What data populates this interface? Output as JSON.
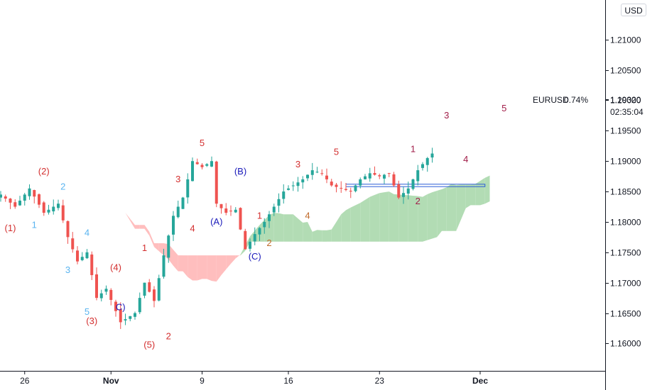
{
  "currency_button": "USD",
  "instrument": {
    "label": "EURUSD",
    "change": "0.74%",
    "last_price": "1.19320",
    "countdown": "02:35:04"
  },
  "chart_data": {
    "type": "candlestick",
    "symbol": "EURUSD",
    "ylim": [
      1.1555,
      1.2165
    ],
    "y_ticks": [
      1.16,
      1.165,
      1.17,
      1.175,
      1.18,
      1.185,
      1.19,
      1.195,
      1.2,
      1.205,
      1.21
    ],
    "y_tick_labels": [
      "1.16000",
      "1.16500",
      "1.17000",
      "1.17500",
      "1.18000",
      "1.18500",
      "1.19000",
      "1.19500",
      "1.20000",
      "1.20500",
      "1.21000"
    ],
    "x_ticks": [
      {
        "index": 5,
        "label": "26",
        "bold": false
      },
      {
        "index": 23,
        "label": "Nov",
        "bold": true
      },
      {
        "index": 42,
        "label": "9",
        "bold": false
      },
      {
        "index": 60,
        "label": "16",
        "bold": false
      },
      {
        "index": 79,
        "label": "23",
        "bold": false
      },
      {
        "index": 100,
        "label": "Dec",
        "bold": true
      }
    ],
    "candle_count": 91,
    "close_path": [
      [
        0,
        1.1845
      ],
      [
        3,
        1.1825
      ],
      [
        6,
        1.1855
      ],
      [
        9,
        1.1815
      ],
      [
        12,
        1.183
      ],
      [
        14,
        1.1775
      ],
      [
        16,
        1.1735
      ],
      [
        18,
        1.175
      ],
      [
        20,
        1.1675
      ],
      [
        22,
        1.169
      ],
      [
        25,
        1.1635
      ],
      [
        28,
        1.165
      ],
      [
        30,
        1.17
      ],
      [
        32,
        1.167
      ],
      [
        34,
        1.1745
      ],
      [
        36,
        1.181
      ],
      [
        38,
        1.184
      ],
      [
        40,
        1.19
      ],
      [
        42,
        1.189
      ],
      [
        44,
        1.19
      ],
      [
        45,
        1.183
      ],
      [
        47,
        1.1815
      ],
      [
        49,
        1.182
      ],
      [
        51,
        1.1755
      ],
      [
        53,
        1.178
      ],
      [
        55,
        1.18
      ],
      [
        57,
        1.1825
      ],
      [
        59,
        1.185
      ],
      [
        61,
        1.186
      ],
      [
        63,
        1.187
      ],
      [
        65,
        1.1885
      ],
      [
        67,
        1.188
      ],
      [
        69,
        1.186
      ],
      [
        71,
        1.1855
      ],
      [
        73,
        1.185
      ],
      [
        75,
        1.187
      ],
      [
        77,
        1.188
      ],
      [
        79,
        1.1875
      ],
      [
        81,
        1.188
      ],
      [
        83,
        1.184
      ],
      [
        85,
        1.1855
      ],
      [
        87,
        1.1885
      ],
      [
        89,
        1.1905
      ],
      [
        91,
        1.192
      ],
      [
        92,
        1.1932
      ]
    ],
    "annotations": [
      {
        "text": "(1)",
        "index": 2,
        "price": 1.1785,
        "color": "#d32f2f"
      },
      {
        "text": "(2)",
        "index": 9,
        "price": 1.1878,
        "color": "#d32f2f"
      },
      {
        "text": "1",
        "index": 7,
        "price": 1.179,
        "color": "#5ab4f0"
      },
      {
        "text": "2",
        "index": 13,
        "price": 1.1853,
        "color": "#5ab4f0"
      },
      {
        "text": "3",
        "index": 14,
        "price": 1.1716,
        "color": "#5ab4f0"
      },
      {
        "text": "4",
        "index": 18,
        "price": 1.1777,
        "color": "#5ab4f0"
      },
      {
        "text": "5",
        "index": 18,
        "price": 1.1647,
        "color": "#5ab4f0"
      },
      {
        "text": "(3)",
        "index": 19,
        "price": 1.1632,
        "color": "#d32f2f"
      },
      {
        "text": "(4)",
        "index": 24,
        "price": 1.172,
        "color": "#d32f2f"
      },
      {
        "text": "C)",
        "index": 25,
        "price": 1.1655,
        "color": "#1a1aba"
      },
      {
        "text": "(5)",
        "index": 31,
        "price": 1.1593,
        "color": "#d32f2f"
      },
      {
        "text": "1",
        "index": 30,
        "price": 1.1752,
        "color": "#d32f2f"
      },
      {
        "text": "2",
        "index": 35,
        "price": 1.1607,
        "color": "#d32f2f"
      },
      {
        "text": "3",
        "index": 37,
        "price": 1.1865,
        "color": "#d32f2f"
      },
      {
        "text": "4",
        "index": 40,
        "price": 1.1784,
        "color": "#d32f2f"
      },
      {
        "text": "5",
        "index": 42,
        "price": 1.1925,
        "color": "#d32f2f"
      },
      {
        "text": "(A)",
        "index": 45,
        "price": 1.1795,
        "color": "#1a1aba"
      },
      {
        "text": "(B)",
        "index": 50,
        "price": 1.1878,
        "color": "#1a1aba"
      },
      {
        "text": "(C)",
        "index": 53,
        "price": 1.1738,
        "color": "#1a1aba"
      },
      {
        "text": "1",
        "index": 54,
        "price": 1.1805,
        "color": "#d32f2f"
      },
      {
        "text": "2",
        "index": 56,
        "price": 1.176,
        "color": "#c06a2a"
      },
      {
        "text": "3",
        "index": 62,
        "price": 1.189,
        "color": "#d32f2f"
      },
      {
        "text": "4",
        "index": 64,
        "price": 1.1805,
        "color": "#c06a2a"
      },
      {
        "text": "5",
        "index": 70,
        "price": 1.191,
        "color": "#d32f2f"
      },
      {
        "text": "1",
        "index": 86,
        "price": 1.1915,
        "color": "#a11d48"
      },
      {
        "text": "2",
        "index": 87,
        "price": 1.1829,
        "color": "#a11d48"
      },
      {
        "text": "3",
        "index": 93,
        "price": 1.197,
        "color": "#a11d48"
      },
      {
        "text": "4",
        "index": 97,
        "price": 1.1898,
        "color": "#a11d48"
      },
      {
        "text": "5",
        "index": 105,
        "price": 1.1982,
        "color": "#a11d48"
      }
    ],
    "rectangle": {
      "from_index": 72,
      "to_index": 101,
      "price_top": 1.1862,
      "price_bottom": 1.1858,
      "color": "#2a5bd7"
    },
    "colors": {
      "up": "#26a69a",
      "down": "#ef5350",
      "cloud_bull": "#a5d6a7",
      "cloud_bear": "#ffb3b3"
    }
  }
}
